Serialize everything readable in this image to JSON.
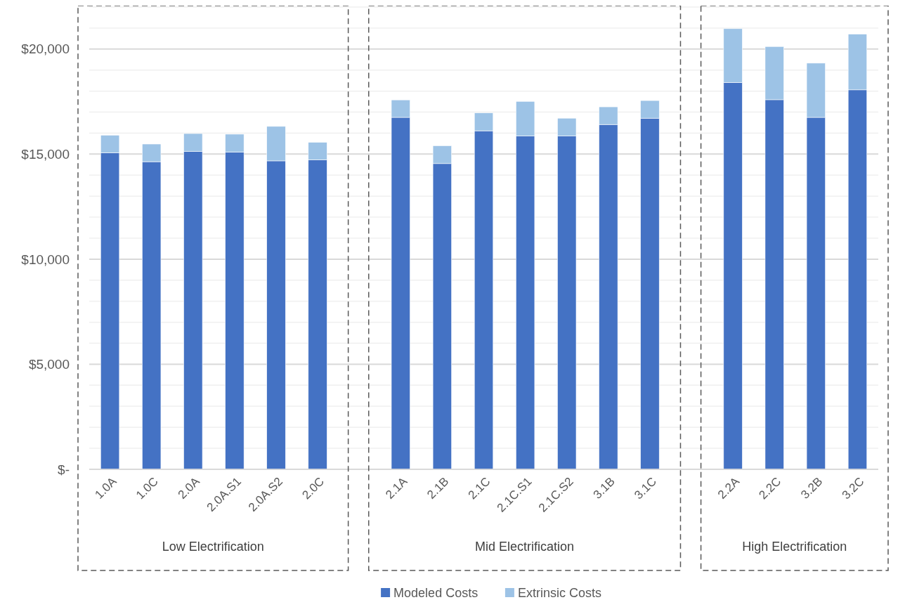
{
  "chart_data": {
    "type": "bar",
    "stacked": true,
    "categories": [
      "1.0A",
      "1.0C",
      "2.0A",
      "2.0A.S1",
      "2.0A.S2",
      "2.0C",
      null,
      "2.1A",
      "2.1B",
      "2.1C",
      "2.1C.S1",
      "2.1C.S2",
      "3.1B",
      "3.1C",
      null,
      "2.2A",
      "2.2C",
      "3.2B",
      "3.2C"
    ],
    "series": [
      {
        "name": "Modeled Costs",
        "color": "#4472c4",
        "values": [
          15060,
          14640,
          15130,
          15100,
          14680,
          14730,
          null,
          16750,
          14550,
          16110,
          15860,
          15860,
          16410,
          16710,
          null,
          18410,
          17590,
          16750,
          18060
        ]
      },
      {
        "name": "Extrinsic Costs",
        "color": "#9dc3e6",
        "values": [
          840,
          840,
          850,
          850,
          1640,
          830,
          null,
          830,
          850,
          850,
          1650,
          850,
          840,
          840,
          null,
          2560,
          2530,
          2580,
          2650
        ]
      }
    ],
    "ylim": [
      0,
      22000
    ],
    "yticks": [
      {
        "value": 0,
        "label": "$-"
      },
      {
        "value": 1000,
        "label": null
      },
      {
        "value": 2000,
        "label": null
      },
      {
        "value": 3000,
        "label": null
      },
      {
        "value": 4000,
        "label": null
      },
      {
        "value": 5000,
        "label": "$5,000"
      },
      {
        "value": 6000,
        "label": null
      },
      {
        "value": 7000,
        "label": null
      },
      {
        "value": 8000,
        "label": null
      },
      {
        "value": 9000,
        "label": null
      },
      {
        "value": 10000,
        "label": "$10,000"
      },
      {
        "value": 11000,
        "label": null
      },
      {
        "value": 12000,
        "label": null
      },
      {
        "value": 13000,
        "label": null
      },
      {
        "value": 14000,
        "label": null
      },
      {
        "value": 15000,
        "label": "$15,000"
      },
      {
        "value": 16000,
        "label": null
      },
      {
        "value": 17000,
        "label": null
      },
      {
        "value": 18000,
        "label": null
      },
      {
        "value": 19000,
        "label": null
      },
      {
        "value": 20000,
        "label": "$20,000"
      },
      {
        "value": 21000,
        "label": null
      },
      {
        "value": 22000,
        "label": null
      }
    ],
    "grid": true,
    "legend": "bottom",
    "annotations": [
      "Low Electrification",
      "Mid Electrification",
      "High Electrification"
    ]
  }
}
